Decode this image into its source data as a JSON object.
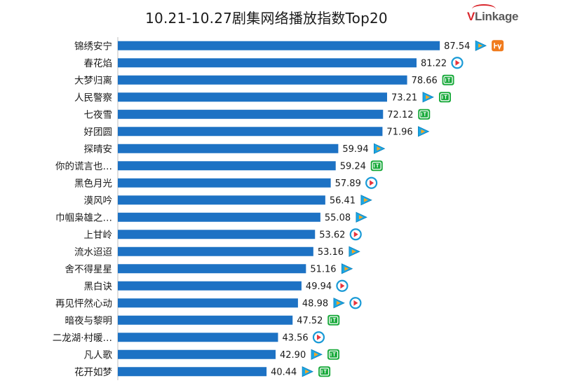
{
  "header": {
    "title": "10.21-10.27剧集网络播放指数Top20",
    "logo_text_v": "V",
    "logo_text_rest": "Linkage"
  },
  "colors": {
    "bar": "#1d72c4",
    "tencent": "#19a7e6",
    "tencent_accent": "#f5a623",
    "youku": "#1a9ad6",
    "youku_accent": "#e8343c",
    "iqiyi": "#1aaa3c",
    "mango": "#f07b1d"
  },
  "chart_data": {
    "type": "bar",
    "orientation": "horizontal",
    "title": "10.21-10.27剧集网络播放指数Top20",
    "categories": [
      "锦绣安宁",
      "春花焰",
      "大梦归离",
      "人民警察",
      "七夜雪",
      "好团圆",
      "探晴安",
      "你的谎言也…",
      "黑色月光",
      "漠风吟",
      "巾帼枭雄之…",
      "上甘岭",
      "流水迢迢",
      "舍不得星星",
      "黑白诀",
      "再见怦然心动",
      "暗夜与黎明",
      "二龙湖·村暖…",
      "凡人歌",
      "花开如梦"
    ],
    "values": [
      87.54,
      81.22,
      78.66,
      73.21,
      72.12,
      71.96,
      59.94,
      59.24,
      57.89,
      56.41,
      55.08,
      53.62,
      53.16,
      51.16,
      49.94,
      48.98,
      47.52,
      43.56,
      42.9,
      40.44
    ],
    "value_labels": [
      "87.54",
      "81.22",
      "78.66",
      "73.21",
      "72.12",
      "71.96",
      "59.94",
      "59.24",
      "57.89",
      "56.41",
      "55.08",
      "53.62",
      "53.16",
      "51.16",
      "49.94",
      "48.98",
      "47.52",
      "43.56",
      "42.90",
      "40.44"
    ],
    "platforms": [
      [
        "tencent",
        "mango"
      ],
      [
        "youku"
      ],
      [
        "iqiyi"
      ],
      [
        "tencent",
        "iqiyi"
      ],
      [
        "iqiyi"
      ],
      [
        "tencent"
      ],
      [
        "tencent"
      ],
      [
        "iqiyi"
      ],
      [
        "youku"
      ],
      [
        "tencent"
      ],
      [
        "tencent"
      ],
      [
        "youku"
      ],
      [
        "tencent"
      ],
      [
        "tencent"
      ],
      [
        "youku"
      ],
      [
        "tencent",
        "youku"
      ],
      [
        "iqiyi"
      ],
      [
        "youku"
      ],
      [
        "tencent",
        "iqiyi"
      ],
      [
        "tencent",
        "iqiyi"
      ]
    ],
    "xlim": [
      0,
      100
    ],
    "grid": false,
    "legend": "none"
  }
}
